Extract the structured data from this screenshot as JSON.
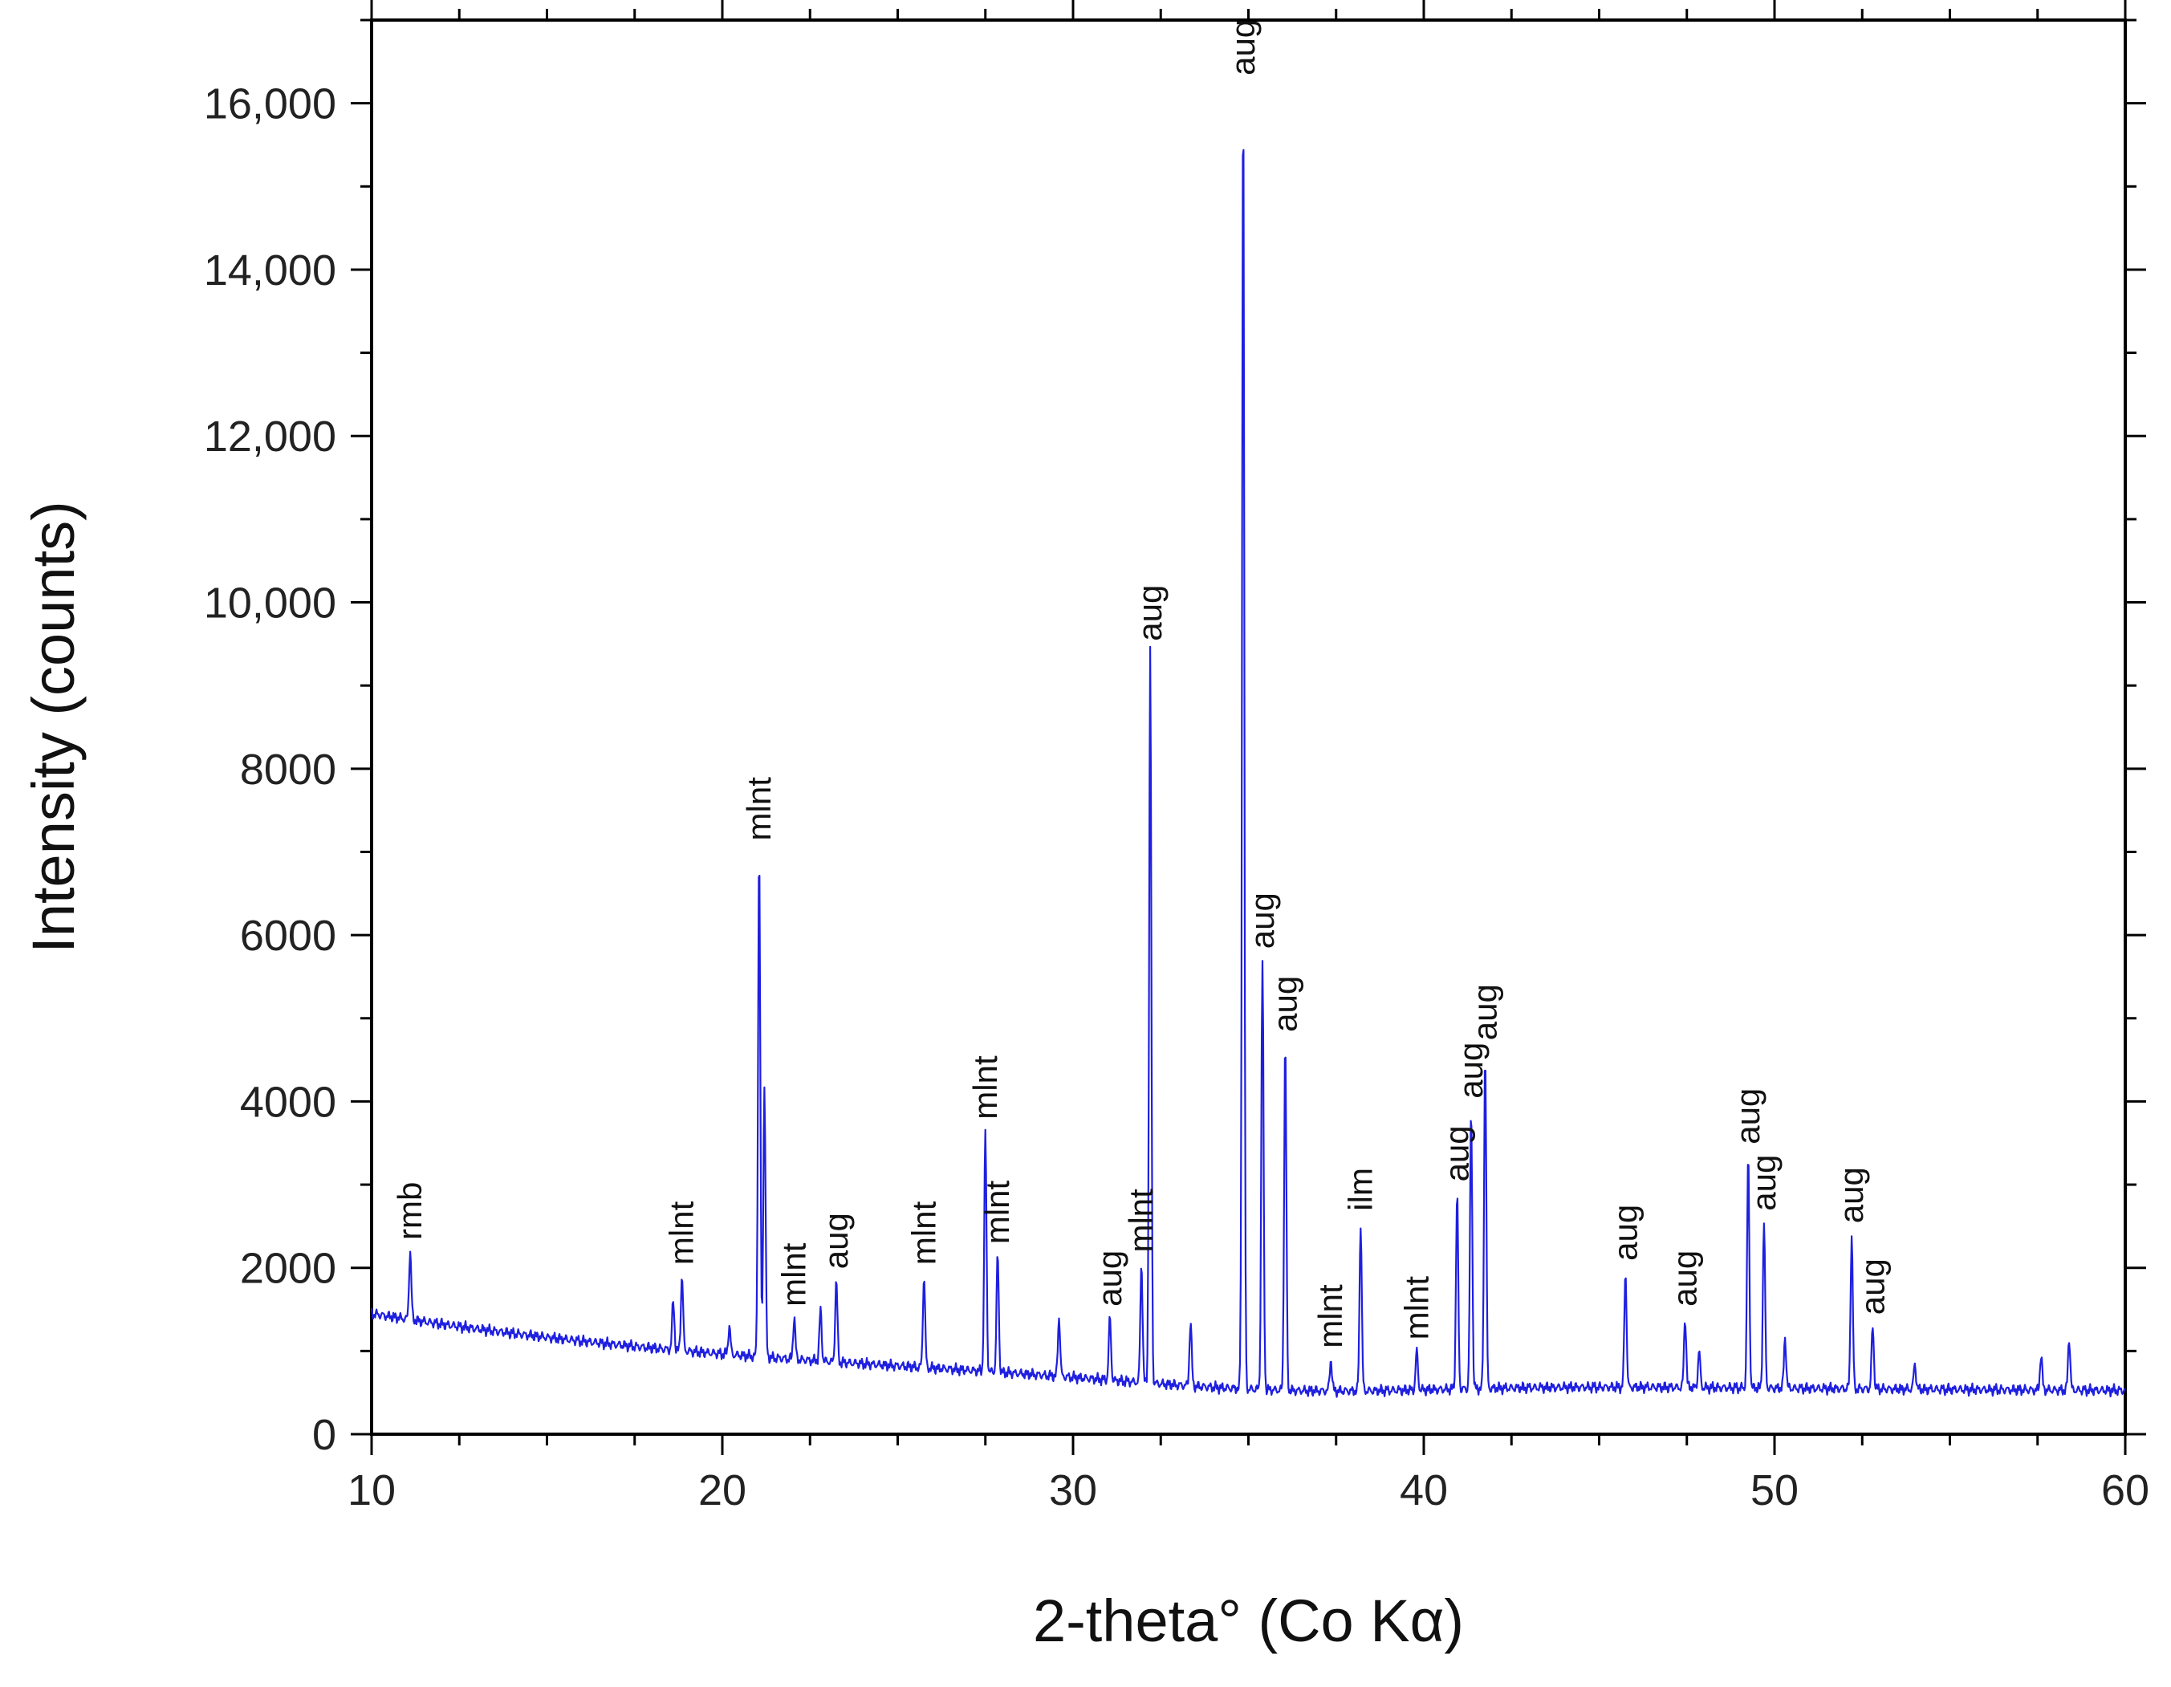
{
  "chart_data": {
    "type": "line",
    "title": "",
    "xlabel": "2-theta° (Co Kα)",
    "ylabel": "Intensity (counts)",
    "xlim": [
      10,
      60
    ],
    "ylim": [
      0,
      17000
    ],
    "x_ticks": [
      10,
      20,
      30,
      40,
      50,
      60
    ],
    "x_tick_labels": [
      "10",
      "20",
      "30",
      "40",
      "50",
      "60"
    ],
    "y_ticks": [
      0,
      2000,
      4000,
      6000,
      8000,
      10000,
      12000,
      14000,
      16000
    ],
    "y_tick_labels": [
      "0",
      "2000",
      "4000",
      "6000",
      "8000",
      "10,000",
      "12,000",
      "14,000",
      "16,000"
    ],
    "grid": false,
    "legend": "none",
    "line_color": "#1f1fe0",
    "peaks": [
      {
        "x": 11.1,
        "y": 2200,
        "label": "rmb"
      },
      {
        "x": 18.6,
        "y": 1600,
        "label": ""
      },
      {
        "x": 18.85,
        "y": 1900,
        "label": "mlnt"
      },
      {
        "x": 20.2,
        "y": 1300,
        "label": ""
      },
      {
        "x": 21.05,
        "y": 7000,
        "label": "mlnt"
      },
      {
        "x": 21.2,
        "y": 4200,
        "label": ""
      },
      {
        "x": 22.05,
        "y": 1400,
        "label": "mlnt"
      },
      {
        "x": 22.8,
        "y": 1500,
        "label": ""
      },
      {
        "x": 23.25,
        "y": 1850,
        "label": "aug"
      },
      {
        "x": 25.75,
        "y": 1900,
        "label": "mlnt"
      },
      {
        "x": 27.5,
        "y": 3650,
        "label": "mlnt"
      },
      {
        "x": 27.85,
        "y": 2150,
        "label": "mlnt"
      },
      {
        "x": 29.6,
        "y": 1400,
        "label": ""
      },
      {
        "x": 31.05,
        "y": 1400,
        "label": "aug"
      },
      {
        "x": 31.95,
        "y": 2050,
        "label": "mlnt"
      },
      {
        "x": 32.2,
        "y": 9400,
        "label": "aug"
      },
      {
        "x": 33.35,
        "y": 1350,
        "label": ""
      },
      {
        "x": 34.85,
        "y": 16200,
        "label": "aug"
      },
      {
        "x": 35.4,
        "y": 5700,
        "label": "aug"
      },
      {
        "x": 36.05,
        "y": 4700,
        "label": "aug"
      },
      {
        "x": 37.35,
        "y": 900,
        "label": "mlnt"
      },
      {
        "x": 38.2,
        "y": 2550,
        "label": "ilm"
      },
      {
        "x": 39.8,
        "y": 1000,
        "label": "mlnt"
      },
      {
        "x": 40.95,
        "y": 2900,
        "label": "aug"
      },
      {
        "x": 41.35,
        "y": 3900,
        "label": "aug"
      },
      {
        "x": 41.75,
        "y": 4600,
        "label": "aug"
      },
      {
        "x": 45.75,
        "y": 1950,
        "label": "aug"
      },
      {
        "x": 47.45,
        "y": 1400,
        "label": "aug"
      },
      {
        "x": 47.85,
        "y": 1000,
        "label": ""
      },
      {
        "x": 49.25,
        "y": 3350,
        "label": "aug"
      },
      {
        "x": 49.7,
        "y": 2550,
        "label": "aug"
      },
      {
        "x": 50.3,
        "y": 1150,
        "label": ""
      },
      {
        "x": 52.2,
        "y": 2400,
        "label": "aug"
      },
      {
        "x": 52.8,
        "y": 1300,
        "label": "aug"
      },
      {
        "x": 54.0,
        "y": 850,
        "label": ""
      },
      {
        "x": 57.6,
        "y": 950,
        "label": ""
      },
      {
        "x": 58.4,
        "y": 1150,
        "label": ""
      }
    ]
  }
}
